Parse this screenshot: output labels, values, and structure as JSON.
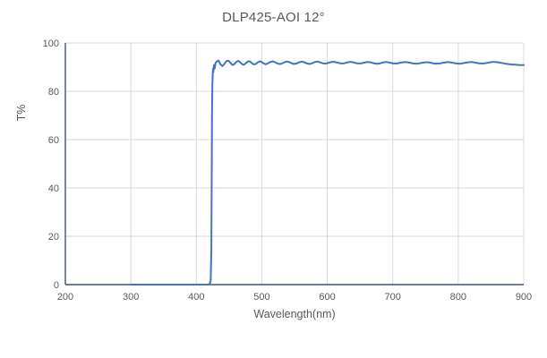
{
  "chart_data": {
    "type": "line",
    "title": "DLP425-AOI 12°",
    "xlabel": "Wavelength(nm)",
    "ylabel": "T%",
    "xlim": [
      200,
      900
    ],
    "xticks": [
      200,
      300,
      400,
      500,
      600,
      700,
      800,
      900
    ],
    "ylim": [
      0,
      100
    ],
    "yticks": [
      0,
      20,
      40,
      60,
      80,
      100
    ],
    "grid": true,
    "legend_position": "none",
    "colors": {
      "line": "#4472C4",
      "gridline": "#D9D9D9",
      "axis": "#44546A",
      "text": "#595959",
      "background": "#ffffff"
    },
    "annotations": {
      "cut_on_wavelength_nm": 425,
      "passband_transmission_pct": "90-93"
    },
    "series": [
      {
        "name": "T%",
        "points": [
          [
            300,
            0
          ],
          [
            320,
            0
          ],
          [
            340,
            0
          ],
          [
            360,
            0
          ],
          [
            380,
            0
          ],
          [
            400,
            0
          ],
          [
            410,
            0
          ],
          [
            415,
            0
          ],
          [
            419,
            0
          ],
          [
            421,
            0.5
          ],
          [
            422,
            2
          ],
          [
            423,
            15
          ],
          [
            423.5,
            45
          ],
          [
            424,
            70
          ],
          [
            424.5,
            82
          ],
          [
            425,
            87
          ],
          [
            425.5,
            89.3
          ],
          [
            426,
            87.9
          ],
          [
            427,
            90.9
          ],
          [
            428,
            89.4
          ],
          [
            429.5,
            91.8
          ],
          [
            431,
            92.3
          ],
          [
            434,
            92.7
          ],
          [
            437,
            91.1
          ],
          [
            440,
            90.4
          ],
          [
            443,
            91.4
          ],
          [
            446,
            92.5
          ],
          [
            449,
            92.7
          ],
          [
            452,
            91.8
          ],
          [
            455,
            90.9
          ],
          [
            458,
            91.2
          ],
          [
            461,
            92.2
          ],
          [
            464,
            92.6
          ],
          [
            467,
            92.0
          ],
          [
            470,
            91.2
          ],
          [
            473,
            91.0
          ],
          [
            476,
            91.7
          ],
          [
            479,
            92.4
          ],
          [
            482,
            92.3
          ],
          [
            485,
            91.6
          ],
          [
            488,
            91.1
          ],
          [
            491,
            91.3
          ],
          [
            494,
            92.0
          ],
          [
            497,
            92.4
          ],
          [
            500,
            92.1
          ],
          [
            503,
            91.5
          ],
          [
            506,
            91.2
          ],
          [
            509,
            91.5
          ],
          [
            513,
            92.1
          ],
          [
            517,
            92.4
          ],
          [
            521,
            91.9
          ],
          [
            525,
            91.4
          ],
          [
            529,
            91.3
          ],
          [
            533,
            91.8
          ],
          [
            537,
            92.3
          ],
          [
            541,
            92.2
          ],
          [
            545,
            91.7
          ],
          [
            549,
            91.3
          ],
          [
            553,
            91.5
          ],
          [
            557,
            92.0
          ],
          [
            561,
            92.3
          ],
          [
            565,
            92.0
          ],
          [
            569,
            91.5
          ],
          [
            573,
            91.3
          ],
          [
            577,
            91.6
          ],
          [
            581,
            92.1
          ],
          [
            585,
            92.3
          ],
          [
            589,
            92.0
          ],
          [
            593,
            91.6
          ],
          [
            597,
            91.4
          ],
          [
            601,
            91.7
          ],
          [
            606,
            92.1
          ],
          [
            611,
            92.2
          ],
          [
            616,
            91.8
          ],
          [
            621,
            91.5
          ],
          [
            626,
            91.6
          ],
          [
            631,
            92.0
          ],
          [
            636,
            92.2
          ],
          [
            641,
            91.9
          ],
          [
            646,
            91.5
          ],
          [
            651,
            91.5
          ],
          [
            656,
            91.8
          ],
          [
            661,
            92.1
          ],
          [
            666,
            92.0
          ],
          [
            671,
            91.6
          ],
          [
            676,
            91.4
          ],
          [
            681,
            91.6
          ],
          [
            686,
            92.0
          ],
          [
            691,
            92.1
          ],
          [
            696,
            91.8
          ],
          [
            701,
            91.5
          ],
          [
            707,
            91.5
          ],
          [
            713,
            91.9
          ],
          [
            719,
            92.1
          ],
          [
            725,
            91.9
          ],
          [
            731,
            91.5
          ],
          [
            737,
            91.4
          ],
          [
            743,
            91.7
          ],
          [
            749,
            92.0
          ],
          [
            755,
            92.0
          ],
          [
            761,
            91.6
          ],
          [
            767,
            91.4
          ],
          [
            773,
            91.6
          ],
          [
            779,
            91.9
          ],
          [
            785,
            92.1
          ],
          [
            791,
            91.8
          ],
          [
            797,
            91.5
          ],
          [
            803,
            91.4
          ],
          [
            809,
            91.7
          ],
          [
            815,
            92.0
          ],
          [
            821,
            92.1
          ],
          [
            827,
            91.8
          ],
          [
            833,
            91.5
          ],
          [
            839,
            91.5
          ],
          [
            845,
            91.8
          ],
          [
            851,
            92.1
          ],
          [
            857,
            92.1
          ],
          [
            863,
            91.9
          ],
          [
            869,
            91.6
          ],
          [
            875,
            91.3
          ],
          [
            881,
            91.1
          ],
          [
            887,
            91.0
          ],
          [
            893,
            90.9
          ],
          [
            900,
            90.8
          ]
        ]
      }
    ]
  }
}
